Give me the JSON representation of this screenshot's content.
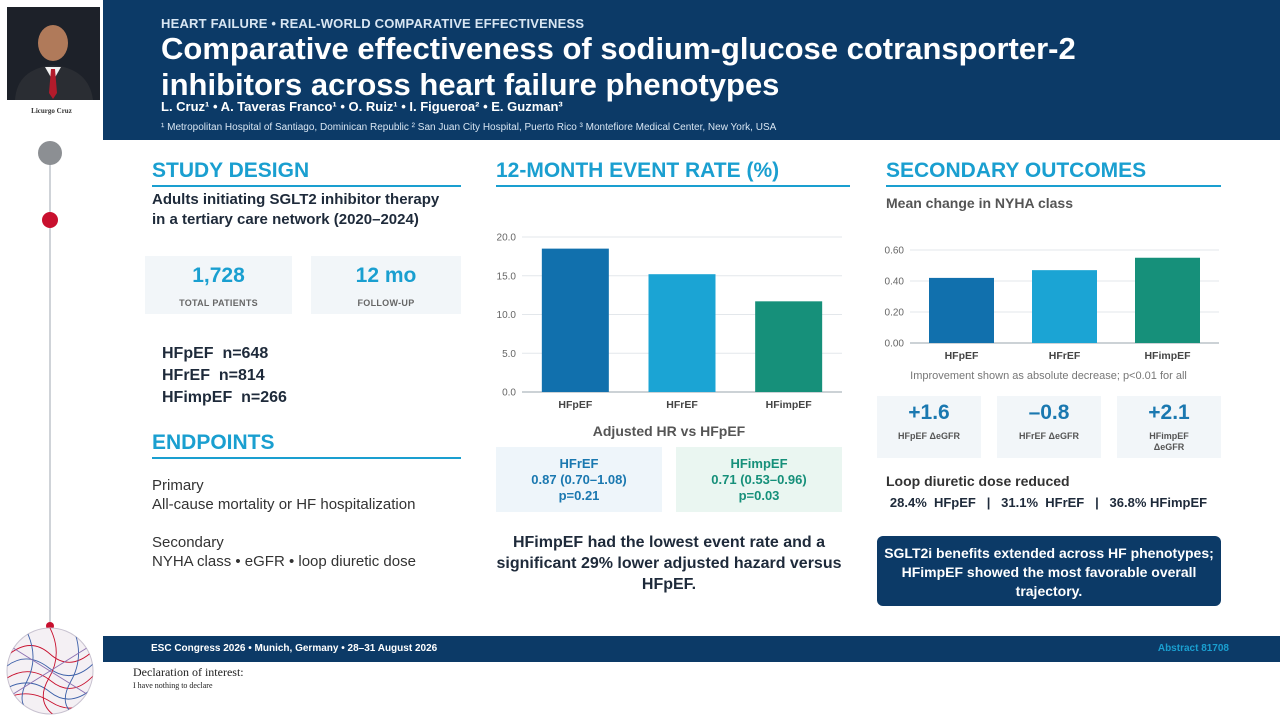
{
  "presenter": {
    "name": "Licurgo Cruz"
  },
  "header": {
    "kicker": "HEART FAILURE • REAL-WORLD COMPARATIVE EFFECTIVENESS",
    "title_line1": "Comparative effectiveness of sodium-glucose cotransporter-2",
    "title_line2": "inhibitors across heart failure phenotypes",
    "authors": "L. Cruz¹ • A. Taveras Franco¹ • O. Ruiz¹ • I. Figueroa² • E. Guzman³",
    "affiliations": "¹ Metropolitan Hospital of Santiago, Dominican Republic   ² San Juan City Hospital, Puerto Rico   ³ Montefiore Medical Center, New York, USA"
  },
  "study_design": {
    "heading": "STUDY DESIGN",
    "description": "Adults initiating SGLT2 inhibitor therapy in a tertiary care network (2020–2024)",
    "stats": [
      {
        "value": "1,728",
        "label": "TOTAL PATIENTS"
      },
      {
        "value": "12 mo",
        "label": "FOLLOW-UP"
      }
    ],
    "cohorts": [
      "HFpEF  n=648",
      "HFrEF  n=814",
      "HFimpEF  n=266"
    ]
  },
  "endpoints": {
    "heading": "ENDPOINTS",
    "primary_label": "Primary",
    "primary_text": "All-cause mortality or HF hospitalization",
    "secondary_label": "Secondary",
    "secondary_text": "NYHA class • eGFR • loop diuretic dose"
  },
  "event_rate": {
    "heading": "12-MONTH EVENT RATE (%)",
    "hr_title": "Adjusted HR vs HFpEF",
    "hr_cards": [
      {
        "name": "HFrEF",
        "hr": "0.87 (0.70–1.08)",
        "p": "p=0.21"
      },
      {
        "name": "HFimpEF",
        "hr": "0.71 (0.53–0.96)",
        "p": "p=0.03"
      }
    ],
    "summary": "HFimpEF had the lowest event rate and a significant 29% lower adjusted hazard versus HFpEF."
  },
  "secondary": {
    "heading": "SECONDARY OUTCOMES",
    "nyha_title": "Mean change in NYHA class",
    "nyha_note": "Improvement shown as absolute decrease; p<0.01 for all",
    "egfr": [
      {
        "value": "+1.6",
        "label": "HFpEF ΔeGFR"
      },
      {
        "value": "–0.8",
        "label": "HFrEF ΔeGFR"
      },
      {
        "value": "+2.1",
        "label": "HFimpEF ΔeGFR"
      }
    ],
    "loop_title": "Loop diuretic dose reduced",
    "loop_text": "28.4%  HFpEF   |   31.1%  HFrEF   |   36.8% HFimpEF",
    "conclusion": "SGLT2i benefits extended across HF phenotypes; HFimpEF showed the most favorable overall trajectory."
  },
  "footer": {
    "left": "ESC Congress 2026 • Munich, Germany • 28–31 August 2026",
    "right": "Abstract 81708"
  },
  "disclosure": {
    "title": "Declaration of interest:",
    "text": "I have nothing to declare"
  },
  "colors": {
    "navy": "#0c3a67",
    "accent": "#1a9fd0",
    "hfpef": "#1170ad",
    "hfref": "#1ba4d4",
    "hfimpef": "#16907a"
  },
  "chart_data": [
    {
      "type": "bar",
      "categories": [
        "HFpEF",
        "HFrEF",
        "HFimpEF"
      ],
      "values": [
        18.5,
        15.2,
        11.7
      ],
      "yticks": [
        "0.0",
        "5.0",
        "10.0",
        "15.0",
        "20.0"
      ],
      "ylim": [
        0,
        20
      ],
      "grid": true
    },
    {
      "type": "bar",
      "categories": [
        "HFpEF",
        "HFrEF",
        "HFimpEF"
      ],
      "values": [
        0.42,
        0.47,
        0.55
      ],
      "yticks": [
        "0.00",
        "0.20",
        "0.40",
        "0.60"
      ],
      "ylim": [
        0,
        0.6
      ],
      "grid": true
    }
  ]
}
